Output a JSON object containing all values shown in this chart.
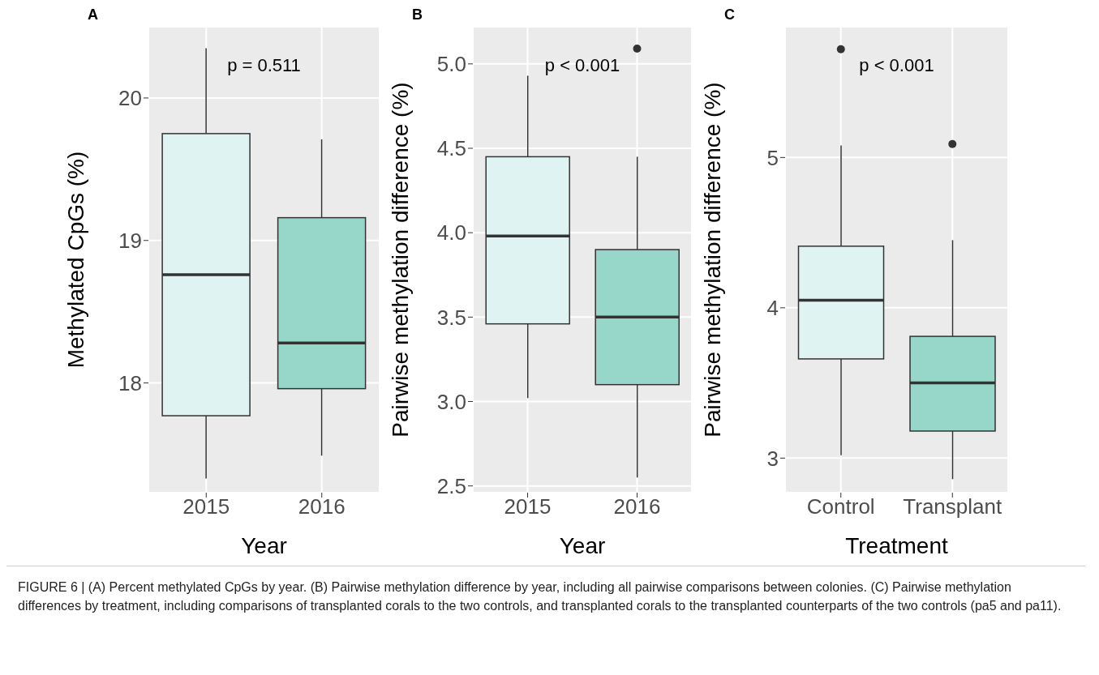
{
  "chart_data": [
    {
      "type": "box",
      "title": "A",
      "categories": [
        "2015",
        "2016"
      ],
      "colors": [
        "#e0f3f3",
        "#97d7ca"
      ],
      "xlabel": "Year",
      "ylabel": "Methylated CpGs (%)",
      "ylim": [
        17.23,
        20.5
      ],
      "yticks": [
        18,
        19,
        20
      ],
      "grid": true,
      "boxes": [
        {
          "low": 17.33,
          "q1": 17.77,
          "median": 18.76,
          "q3": 19.75,
          "high": 20.35
        },
        {
          "low": 17.49,
          "q1": 17.96,
          "median": 18.28,
          "q3": 19.16,
          "high": 19.71
        }
      ],
      "annotations": [
        "p = 0.511"
      ]
    },
    {
      "type": "box",
      "title": "B",
      "categories": [
        "2015",
        "2016"
      ],
      "colors": [
        "#e0f3f3",
        "#97d7ca"
      ],
      "xlabel": "Year",
      "ylabel": "Pairwise methylation difference (%)",
      "ylim": [
        2.46,
        5.22
      ],
      "yticks": [
        {
          "value": 2.5,
          "label": "2.5"
        },
        {
          "value": 3,
          "label": "3.0"
        },
        {
          "value": 3.5,
          "label": "3.5"
        },
        {
          "value": 4,
          "label": "4.0"
        },
        {
          "value": 4.5,
          "label": "4.5"
        },
        {
          "value": 5,
          "label": "5.0"
        }
      ],
      "grid": true,
      "boxes": [
        {
          "low": 3.02,
          "q1": 3.46,
          "median": 3.98,
          "q3": 4.45,
          "high": 4.93
        },
        {
          "low": 2.55,
          "q1": 3.1,
          "median": 3.5,
          "q3": 3.9,
          "high": 4.45,
          "outliers": [
            5.09
          ]
        }
      ],
      "annotations": [
        "p < 0.001"
      ]
    },
    {
      "type": "box",
      "title": "C",
      "categories": [
        "Control",
        "Transplant"
      ],
      "colors": [
        "#e0f3f3",
        "#97d7ca"
      ],
      "xlabel": "Treatment",
      "ylabel": "Pairwise methylation difference (%)",
      "ylim": [
        2.77,
        5.87
      ],
      "yticks": [
        3,
        4,
        5
      ],
      "grid": true,
      "boxes": [
        {
          "low": 3.02,
          "q1": 3.66,
          "median": 4.05,
          "q3": 4.41,
          "high": 5.08,
          "outliers": [
            5.72
          ]
        },
        {
          "low": 2.86,
          "q1": 3.18,
          "median": 3.5,
          "q3": 3.81,
          "high": 4.45,
          "outliers": [
            5.09
          ]
        }
      ],
      "annotations": [
        "p < 0.001",
        "FIGURE 6 | (A) Percent methylated CpGs by year. (B) Pairwise methylation difference by year, including all pairwise comparisons between colonies. (C) Pairwise methylation differences by treatment, including comparisons of transplanted corals to the two controls, and transplanted corals to the transplanted counterparts of the two controls (pa5 and pa11)."
      ]
    }
  ]
}
